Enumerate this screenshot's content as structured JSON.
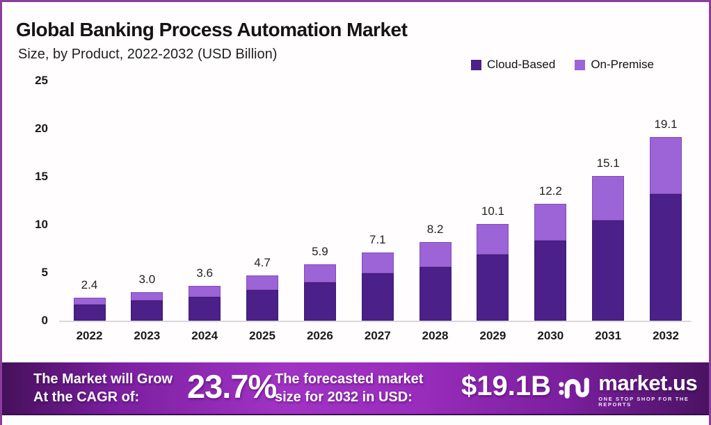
{
  "colors": {
    "frame_border": "#8a3d9c",
    "cloud_based": "#4b2088",
    "on_premise": "#9c64d6",
    "banner_center": "#a133c4",
    "banner_edge": "#45105a",
    "axis_line": "#d9d7da"
  },
  "header": {
    "title": "Global Banking Process Automation Market",
    "subtitle": "Size, by Product, 2022-2032 (USD Billion)"
  },
  "chart_data": {
    "type": "bar",
    "stacked": true,
    "title": "Global Banking Process Automation Market Size, by Product, 2022-2032 (USD Billion)",
    "categories": [
      "2022",
      "2023",
      "2024",
      "2025",
      "2026",
      "2027",
      "2028",
      "2029",
      "2030",
      "2031",
      "2032"
    ],
    "series": [
      {
        "name": "Cloud-Based",
        "color": "#4b2088",
        "values": [
          1.7,
          2.1,
          2.5,
          3.2,
          4.0,
          4.9,
          5.6,
          6.9,
          8.3,
          10.4,
          13.2
        ]
      },
      {
        "name": "On-Premise",
        "color": "#9c64d6",
        "values": [
          0.7,
          0.9,
          1.1,
          1.5,
          1.9,
          2.2,
          2.6,
          3.2,
          3.9,
          4.7,
          5.9
        ]
      }
    ],
    "totals": [
      2.4,
      3.0,
      3.6,
      4.7,
      5.9,
      7.1,
      8.2,
      10.1,
      12.2,
      15.1,
      19.1
    ],
    "total_labels": [
      "2.4",
      "3.0",
      "3.6",
      "4.7",
      "5.9",
      "7.1",
      "8.2",
      "10.1",
      "12.2",
      "15.1",
      "19.1"
    ],
    "xlabel": "",
    "ylabel": "",
    "ylim": [
      0,
      25
    ],
    "yticks": [
      0,
      5,
      10,
      15,
      20,
      25
    ],
    "grid": false,
    "legend_position": "top-right"
  },
  "legend": {
    "items": [
      {
        "label": "Cloud-Based",
        "color": "#4b2088"
      },
      {
        "label": "On-Premise",
        "color": "#9c64d6"
      }
    ]
  },
  "banner": {
    "grow_line1": "The Market will Grow",
    "grow_line2": "At the CAGR of:",
    "cagr_value": "23.7%",
    "forecast_line1": "The forecasted market",
    "forecast_line2": "size for 2032 in USD:",
    "forecast_value": "$19.1B",
    "brand_name": "market.us",
    "brand_tagline": "ONE STOP SHOP FOR THE REPORTS"
  }
}
